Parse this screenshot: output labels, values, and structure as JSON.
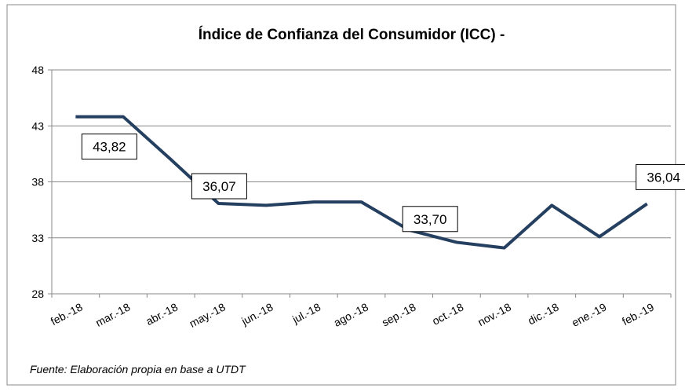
{
  "chart_data": {
    "type": "line",
    "title": "Índice de Confianza del Consumidor (ICC) -",
    "categories": [
      "feb.-18",
      "mar.-18",
      "abr.-18",
      "may.-18",
      "jun.-18",
      "jul.-18",
      "ago.-18",
      "sep.-18",
      "oct.-18",
      "nov.-18",
      "dic.-18",
      "ene.-19",
      "feb.-19"
    ],
    "series": [
      {
        "name": "ICC",
        "color": "#243f60",
        "values": [
          43.82,
          43.82,
          40.0,
          36.07,
          35.9,
          36.2,
          36.2,
          33.7,
          32.6,
          32.1,
          35.9,
          33.1,
          36.04
        ],
        "value_labels": [
          "43,82",
          null,
          null,
          "36,07",
          null,
          null,
          null,
          "33,70",
          null,
          null,
          null,
          null,
          "36,04"
        ]
      }
    ],
    "ylim": [
      28,
      48
    ],
    "yticks": [
      28,
      33,
      38,
      43,
      48
    ],
    "grid": true,
    "note": "Fuente: Elaboración propia en base a UTDT"
  }
}
